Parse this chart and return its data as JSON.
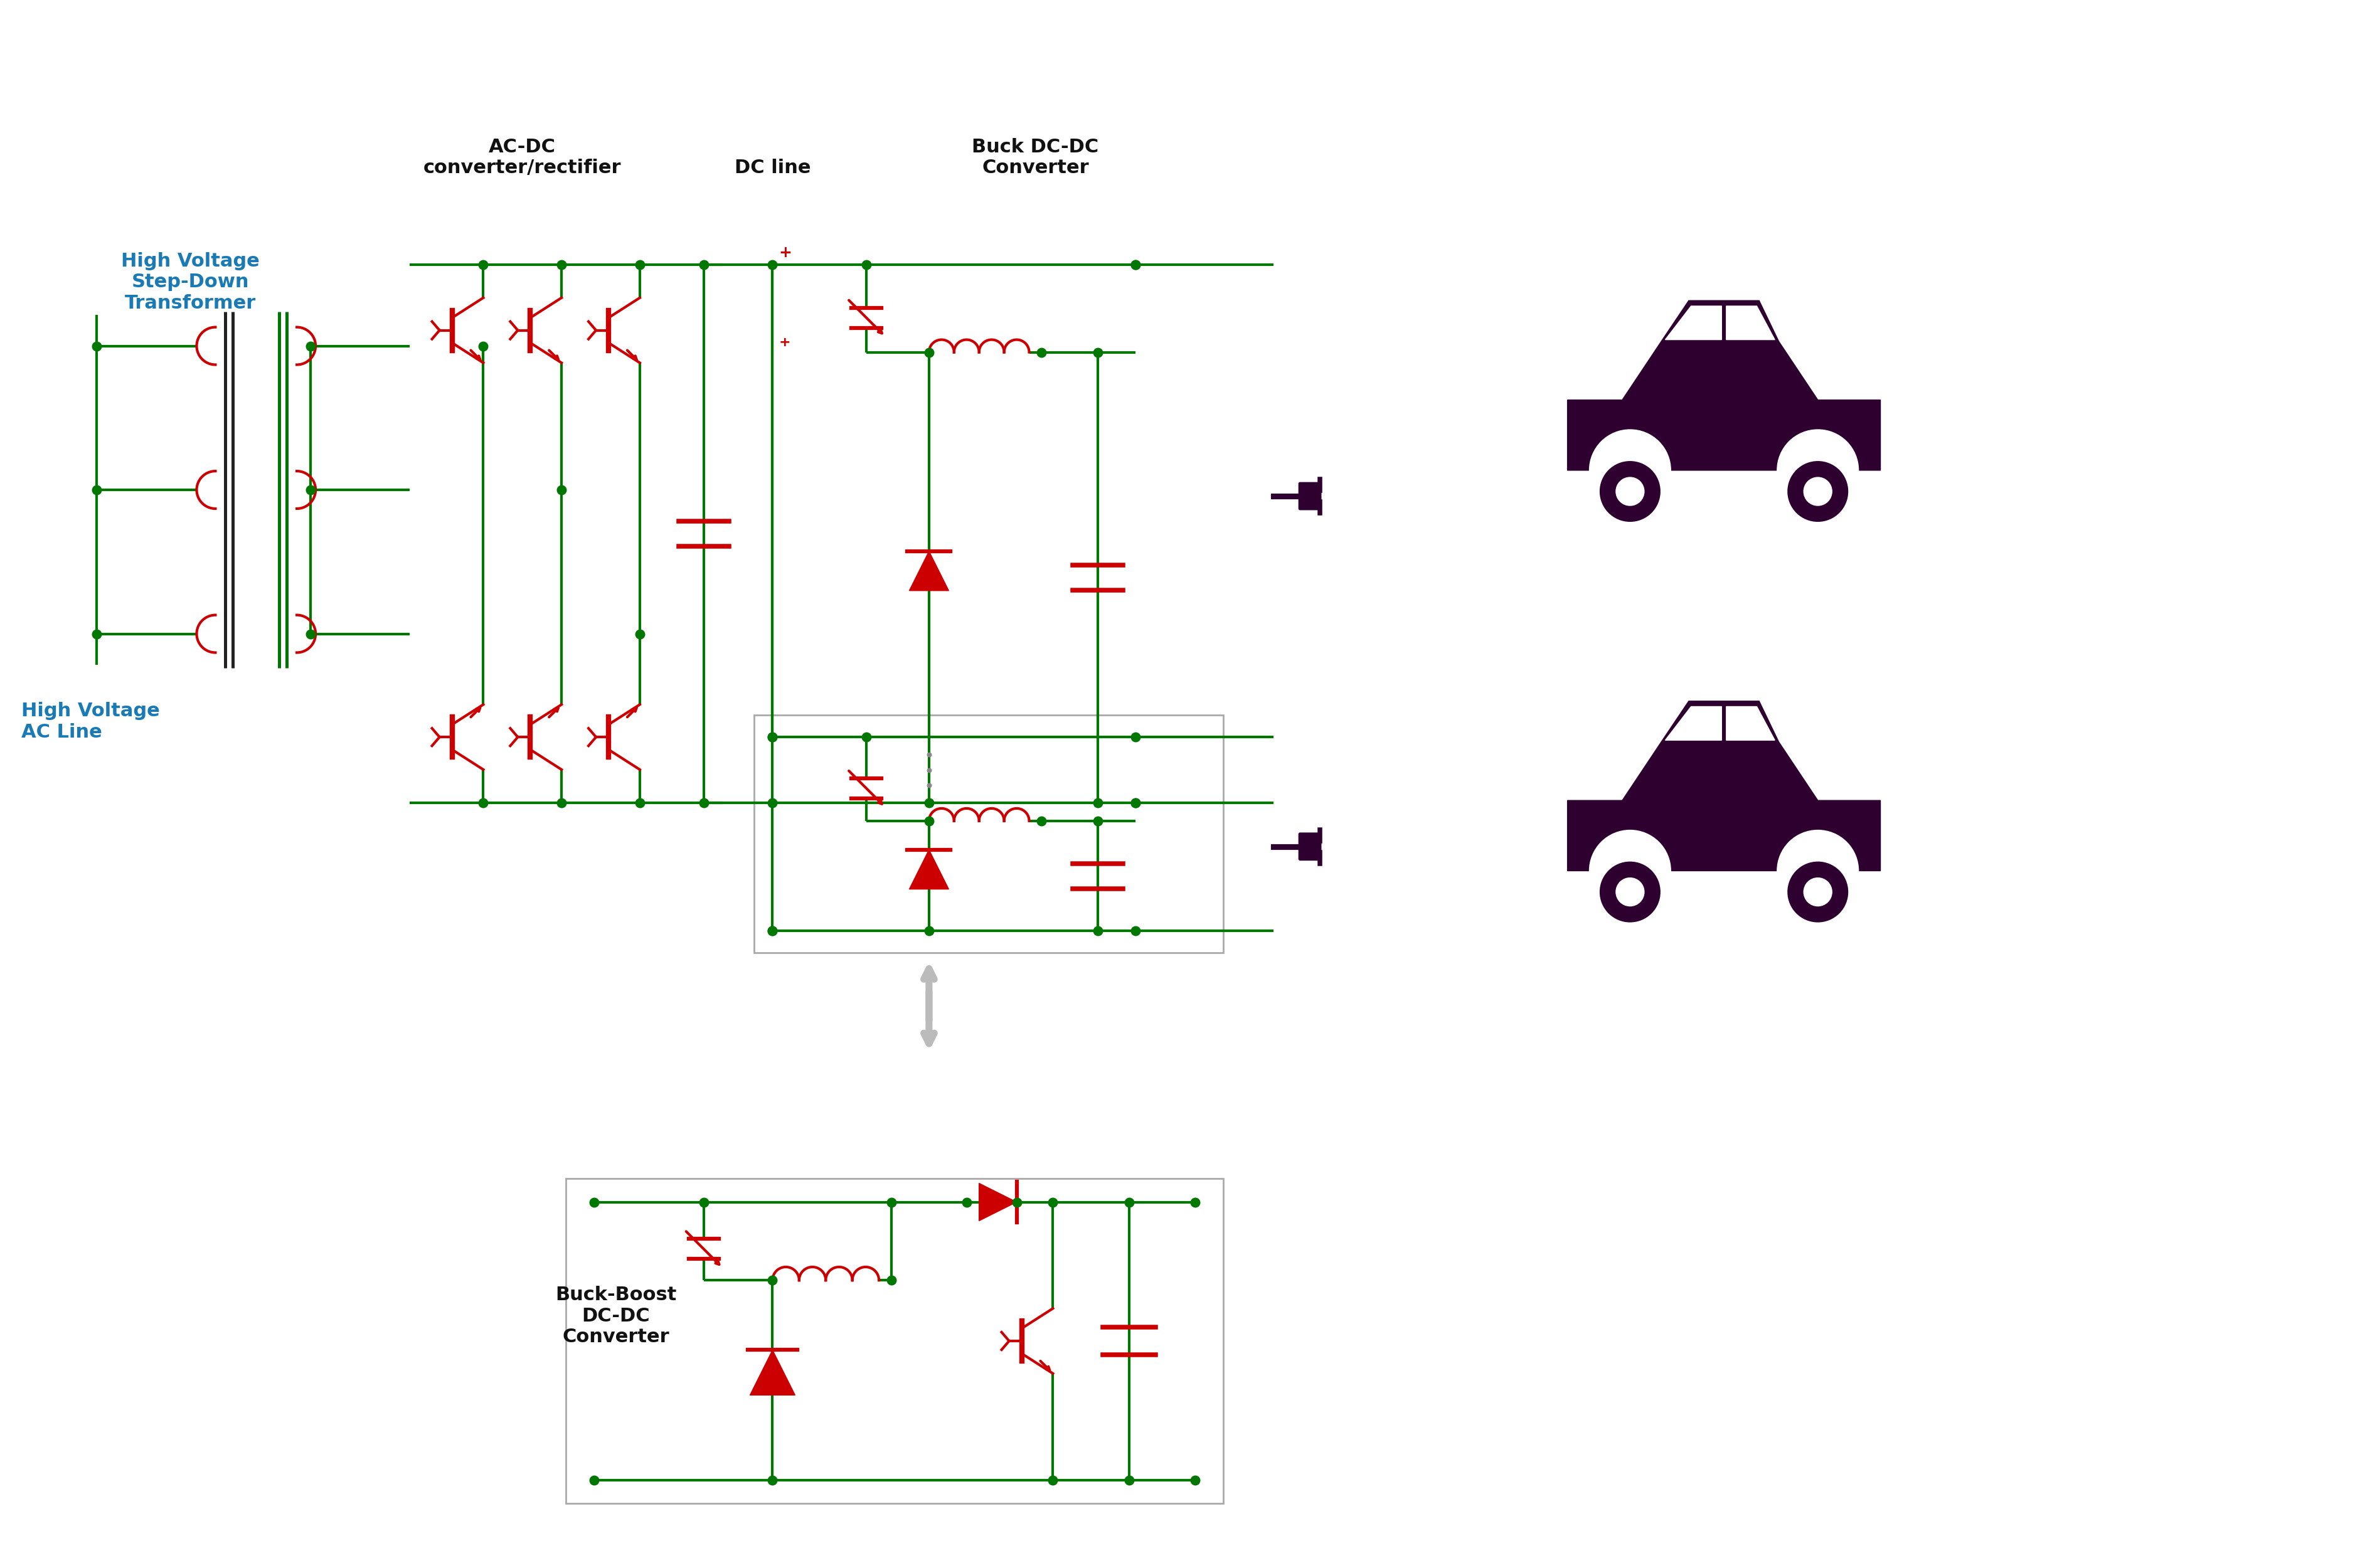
{
  "bg_color": "#ffffff",
  "green": "#007700",
  "red": "#cc0000",
  "dark_purple": "#2d0030",
  "gray_line": "#bbbbbb",
  "text_dark": "#111111",
  "text_blue": "#1a7ab5",
  "lw": 3.0,
  "dot_size": 110,
  "label_ac_dc": "AC-DC\nconverter/rectifier",
  "label_dc_line": "DC line",
  "label_buck": "Buck DC-DC\nConverter",
  "label_hv_transformer": "High Voltage\nStep-Down\nTransformer",
  "label_hv_ac": "High Voltage\nAC Line",
  "label_buck_boost": "Buck-Boost\nDC-DC\nConverter",
  "font_size_main": 22
}
